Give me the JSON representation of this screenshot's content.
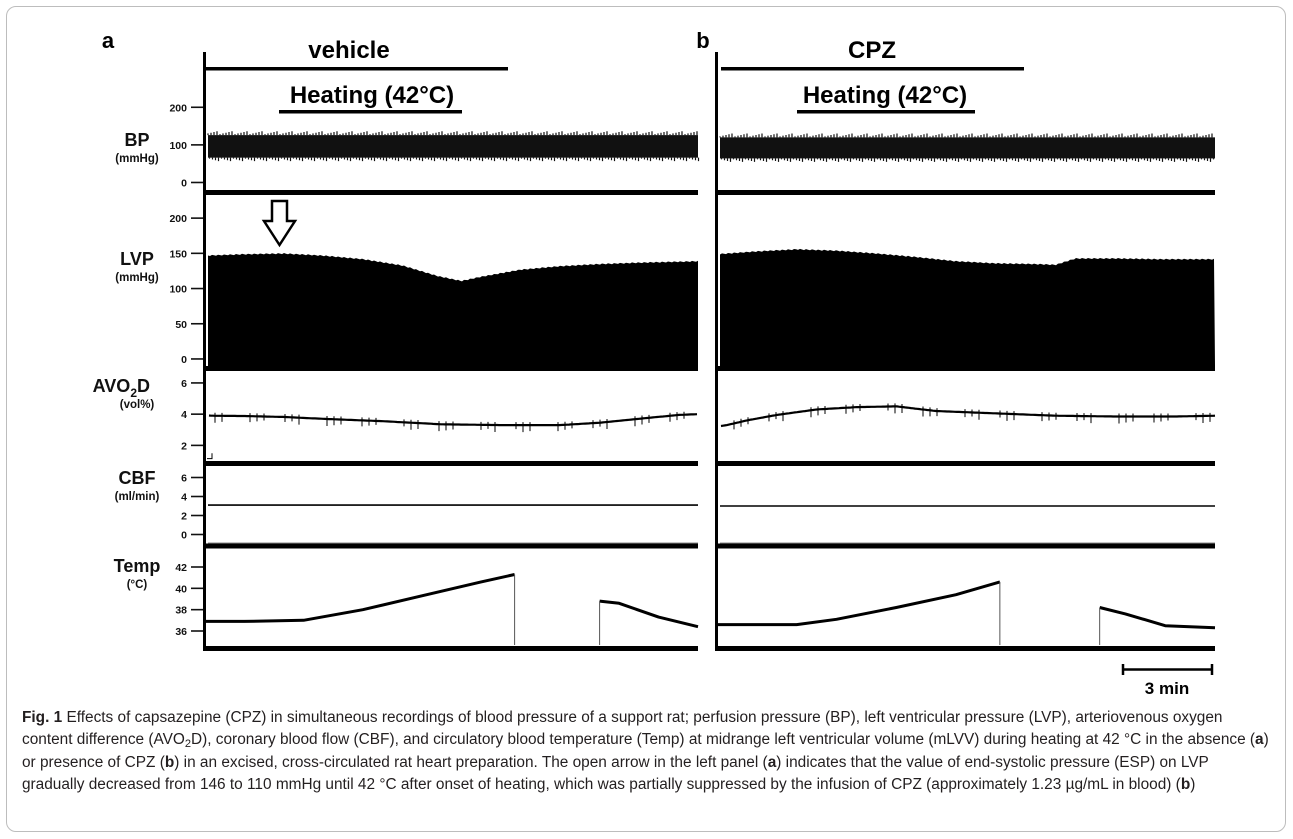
{
  "chart_data": {
    "type": "line",
    "panels": [
      {
        "letter": "a",
        "treatment": "vehicle",
        "heating": "Heating (42°C)"
      },
      {
        "letter": "b",
        "treatment": "CPZ",
        "heating": "Heating (42°C)"
      }
    ],
    "tracks": [
      {
        "key": "BP",
        "label": "BP",
        "unit": "(mmHg)",
        "ticks": [
          "200",
          "100",
          "0"
        ],
        "ylim": [
          -20,
          230
        ]
      },
      {
        "key": "LVP",
        "label": "LVP",
        "unit": "(mmHg)",
        "ticks": [
          "200",
          "150",
          "100",
          "50",
          "0"
        ],
        "ylim": [
          -10,
          230
        ]
      },
      {
        "key": "AVO2D",
        "label_main": "AVO",
        "label_sub": "2",
        "label_tail": "D",
        "unit": "(vol%)",
        "ticks": [
          "6",
          "4",
          "2"
        ],
        "ylim": [
          1,
          6.7
        ]
      },
      {
        "key": "CBF",
        "label": "CBF",
        "unit": "(ml/min)",
        "ticks": [
          "6",
          "4",
          "2",
          "0"
        ],
        "ylim": [
          -1,
          7
        ]
      },
      {
        "key": "Temp",
        "label": "Temp",
        "unit": "(°C)",
        "ticks": [
          "42",
          "40",
          "38",
          "36"
        ],
        "ylim": [
          34.5,
          43.5
        ]
      }
    ],
    "x_unit": "min",
    "xlim": [
      0,
      25
    ],
    "series": [
      {
        "panel": "a",
        "bp_systolic": 126,
        "bp_diastolic": 66,
        "lvp_esp": {
          "x": [
            0,
            2,
            4,
            6,
            8,
            10,
            11.8,
            13,
            14,
            16,
            18,
            20,
            22,
            25
          ],
          "y": [
            146,
            148,
            149,
            146,
            141,
            132,
            117,
            110,
            116,
            126,
            131,
            134,
            136,
            138
          ]
        },
        "avo2d": {
          "x": [
            0,
            0.3,
            2,
            4,
            6,
            9,
            12,
            15,
            18,
            20,
            22,
            24,
            25
          ],
          "y": [
            3.95,
            3.9,
            3.88,
            3.82,
            3.7,
            3.55,
            3.35,
            3.3,
            3.3,
            3.45,
            3.7,
            3.95,
            4.0
          ]
        },
        "cbf": 3.1,
        "temp": {
          "x": [
            0,
            2,
            5,
            8,
            11,
            14,
            15.7,
            15.71,
            17,
            20,
            20.01,
            21,
            23,
            25
          ],
          "y": [
            36.9,
            36.9,
            37.0,
            38.0,
            39.3,
            40.6,
            41.3,
            null,
            null,
            null,
            38.8,
            38.6,
            37.3,
            36.4
          ]
        }
      },
      {
        "panel": "b",
        "bp_systolic": 120,
        "bp_diastolic": 64,
        "lvp_esp": {
          "x": [
            0,
            2,
            4,
            6,
            8,
            10,
            12,
            14,
            16,
            17,
            18,
            20,
            22,
            25
          ],
          "y": [
            148,
            152,
            155,
            153,
            149,
            144,
            138,
            135,
            134,
            133,
            142,
            142,
            141,
            141
          ]
        },
        "avo2d": {
          "x": [
            0,
            0.5,
            1.5,
            3,
            5,
            7,
            9,
            11,
            14,
            17,
            20,
            23,
            25
          ],
          "y": [
            3.2,
            3.3,
            3.6,
            3.95,
            4.3,
            4.45,
            4.5,
            4.2,
            4.05,
            3.9,
            3.85,
            3.85,
            3.9
          ]
        },
        "cbf": 3.0,
        "temp": {
          "x": [
            0,
            2,
            4,
            6,
            9,
            12,
            14.2,
            14.21,
            17,
            19.2,
            19.21,
            20.5,
            22.5,
            25
          ],
          "y": [
            36.6,
            36.6,
            36.6,
            37.1,
            38.2,
            39.4,
            40.6,
            null,
            null,
            null,
            38.2,
            37.6,
            36.5,
            36.3
          ]
        }
      }
    ],
    "scalebar": "3 min"
  },
  "caption": {
    "fig_label": "Fig. 1",
    "t1": "Effects of capsazepine (CPZ) in simultaneous recordings of blood pressure of a support rat; perfusion pressure (BP), left ventricular pressure (LVP), arteriovenous oxygen content difference (AVO",
    "t1_sub": "2",
    "t2": "D), coronary blood flow (CBF), and circulatory blood temperature (Temp) at midrange left ventricular volume (mLVV) during heating at 42 °C in the absence (",
    "a1": "a",
    "t3": ") or presence of CPZ (",
    "b1": "b",
    "t4": ") in an excised, cross-circulated rat heart preparation. The open arrow in the left panel (",
    "a2": "a",
    "t5": ") indicates that the value of end-systolic pressure (ESP) on LVP gradually decreased from 146 to 110 mmHg until 42 °C after onset of heating, which was partially suppressed by the infusion of CPZ (approximately 1.23 µg/mL in blood) (",
    "b2": "b",
    "t6": ")"
  }
}
